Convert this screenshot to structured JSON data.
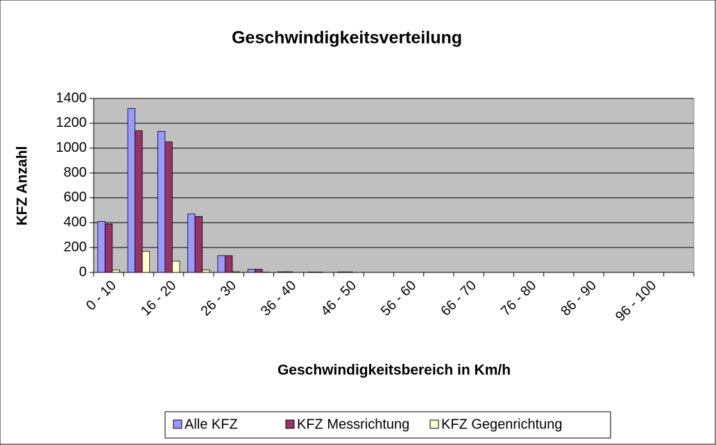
{
  "chart_data": {
    "type": "bar",
    "title": "Geschwindigkeitsverteilung",
    "xlabel": "Geschwindigkeitsbereich  in Km/h",
    "ylabel": "KFZ Anzahl",
    "categories": [
      "0 - 10",
      null,
      "16 - 20",
      null,
      "26 - 30",
      null,
      "36 - 40",
      null,
      "46 - 50",
      null,
      "56 - 60",
      null,
      "66 - 70",
      null,
      "76 - 80",
      null,
      "86 - 90",
      null,
      "96 - 100",
      null
    ],
    "series": [
      {
        "name": "Alle KFZ",
        "color": "#9999ff",
        "values": [
          410,
          1320,
          1135,
          470,
          135,
          25,
          5,
          3,
          4,
          0,
          0,
          0,
          0,
          0,
          0,
          0,
          0,
          0,
          0,
          0
        ]
      },
      {
        "name": "KFZ Messrichtung",
        "color": "#993366",
        "values": [
          390,
          1140,
          1050,
          450,
          135,
          25,
          5,
          3,
          4,
          0,
          0,
          0,
          0,
          0,
          0,
          0,
          0,
          0,
          0,
          0
        ]
      },
      {
        "name": "KFZ Gegenrichtung",
        "color": "#ffffcc",
        "values": [
          20,
          170,
          90,
          20,
          5,
          2,
          0,
          0,
          0,
          0,
          0,
          0,
          0,
          0,
          0,
          0,
          0,
          0,
          0,
          0
        ]
      }
    ],
    "ylim": [
      0,
      1400
    ],
    "yticks": [
      0,
      200,
      400,
      600,
      800,
      1000,
      1200,
      1400
    ],
    "grid": true,
    "legend": "bottom"
  }
}
